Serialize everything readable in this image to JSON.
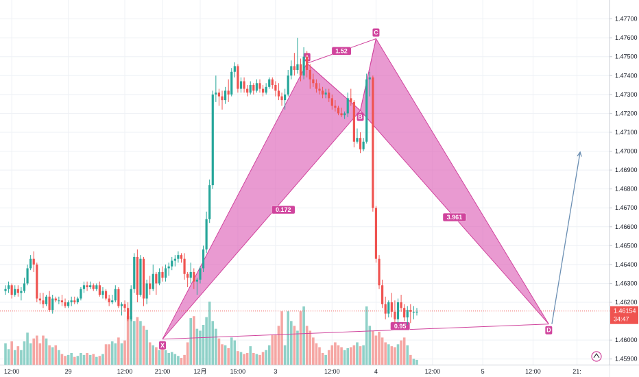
{
  "chart_data": {
    "type": "candlestick",
    "instrument_note": "",
    "price_axis": {
      "range": [
        1.4587,
        1.478
      ],
      "ticks": [
        1.477,
        1.476,
        1.475,
        1.474,
        1.473,
        1.472,
        1.471,
        1.47,
        1.469,
        1.468,
        1.467,
        1.466,
        1.465,
        1.464,
        1.463,
        1.462,
        1.46,
        1.459
      ],
      "tick_labels": [
        "1.47700",
        "1.47600",
        "1.47500",
        "1.47400",
        "1.47300",
        "1.47200",
        "1.47100",
        "1.47000",
        "1.46900",
        "1.46800",
        "1.46700",
        "1.46600",
        "1.46500",
        "1.46400",
        "1.46300",
        "1.46200",
        "1.46000",
        "1.45900"
      ],
      "side": "right",
      "grid": true
    },
    "time_axis": {
      "tick_labels": [
        "12:00",
        "29",
        "12:00",
        "21:00",
        "12月",
        "15:00",
        "3",
        "12:00",
        "4",
        "12:00",
        "5",
        "12:00",
        "21:"
      ],
      "tick_index": [
        2,
        20,
        38,
        50,
        62,
        74,
        86,
        104,
        118,
        136,
        152,
        168,
        182
      ],
      "grid": true
    },
    "last_price": {
      "value": 1.46154,
      "label": "1.46154",
      "countdown": "34:47",
      "color": "#ef5350"
    },
    "up_color": "#26a69a",
    "down_color": "#ef5350",
    "volume_up_color": "#8fd1c8",
    "volume_down_color": "#f5a6a3",
    "candles": [
      [
        1.4626,
        1.4629,
        1.4624,
        1.4627,
        44
      ],
      [
        1.4627,
        1.4631,
        1.4625,
        1.4629,
        32
      ],
      [
        1.4629,
        1.463,
        1.4622,
        1.4624,
        48
      ],
      [
        1.4624,
        1.4629,
        1.4623,
        1.4627,
        30
      ],
      [
        1.4627,
        1.4629,
        1.4623,
        1.4625,
        38
      ],
      [
        1.4625,
        1.4628,
        1.4621,
        1.4626,
        30
      ],
      [
        1.4626,
        1.4633,
        1.4625,
        1.463,
        48
      ],
      [
        1.463,
        1.464,
        1.4629,
        1.4638,
        66
      ],
      [
        1.4638,
        1.4645,
        1.4637,
        1.4643,
        44
      ],
      [
        1.4643,
        1.4647,
        1.4636,
        1.464,
        54
      ],
      [
        1.464,
        1.4641,
        1.462,
        1.4622,
        60
      ],
      [
        1.4622,
        1.4625,
        1.4619,
        1.4621,
        44
      ],
      [
        1.4621,
        1.4625,
        1.4617,
        1.4619,
        60
      ],
      [
        1.4619,
        1.4624,
        1.4618,
        1.4623,
        54
      ],
      [
        1.4623,
        1.4626,
        1.4615,
        1.4616,
        40
      ],
      [
        1.4616,
        1.4624,
        1.4614,
        1.4622,
        36
      ],
      [
        1.4622,
        1.4623,
        1.462,
        1.4621,
        40
      ],
      [
        1.4621,
        1.4623,
        1.4619,
        1.4621,
        30
      ],
      [
        1.4621,
        1.4624,
        1.4618,
        1.462,
        22
      ],
      [
        1.462,
        1.4622,
        1.4617,
        1.4618,
        18
      ],
      [
        1.4618,
        1.4621,
        1.4617,
        1.462,
        20
      ],
      [
        1.462,
        1.4623,
        1.4618,
        1.4621,
        24
      ],
      [
        1.4621,
        1.4623,
        1.4619,
        1.462,
        16
      ],
      [
        1.462,
        1.4623,
        1.4619,
        1.4622,
        18
      ],
      [
        1.4622,
        1.4628,
        1.4621,
        1.4627,
        24
      ],
      [
        1.4627,
        1.4631,
        1.4625,
        1.4629,
        20
      ],
      [
        1.4629,
        1.4631,
        1.4626,
        1.4628,
        24
      ],
      [
        1.4628,
        1.4631,
        1.4627,
        1.4629,
        20
      ],
      [
        1.4629,
        1.463,
        1.4626,
        1.4627,
        22
      ],
      [
        1.4627,
        1.463,
        1.4626,
        1.4629,
        16
      ],
      [
        1.4629,
        1.4631,
        1.4623,
        1.4624,
        18
      ],
      [
        1.4624,
        1.4628,
        1.4622,
        1.4626,
        22
      ],
      [
        1.4626,
        1.4627,
        1.4621,
        1.4622,
        42
      ],
      [
        1.4622,
        1.4624,
        1.4618,
        1.462,
        42
      ],
      [
        1.462,
        1.4624,
        1.4619,
        1.4621,
        48
      ],
      [
        1.4621,
        1.4629,
        1.462,
        1.4627,
        44
      ],
      [
        1.4627,
        1.4628,
        1.4617,
        1.4618,
        56
      ],
      [
        1.4618,
        1.462,
        1.4613,
        1.4619,
        44
      ],
      [
        1.4619,
        1.4621,
        1.4615,
        1.4617,
        50
      ],
      [
        1.4617,
        1.462,
        1.461,
        1.4611,
        100
      ],
      [
        1.4611,
        1.4629,
        1.461,
        1.4627,
        100
      ],
      [
        1.4627,
        1.4646,
        1.4625,
        1.4644,
        90
      ],
      [
        1.4644,
        1.4648,
        1.462,
        1.4624,
        98
      ],
      [
        1.4624,
        1.4645,
        1.4623,
        1.4643,
        90
      ],
      [
        1.4643,
        1.4644,
        1.4618,
        1.4622,
        80
      ],
      [
        1.4622,
        1.4632,
        1.4619,
        1.463,
        72
      ],
      [
        1.463,
        1.4634,
        1.4624,
        1.4627,
        46
      ],
      [
        1.4627,
        1.464,
        1.4626,
        1.4635,
        40
      ],
      [
        1.4635,
        1.4636,
        1.4624,
        1.463,
        36
      ],
      [
        1.463,
        1.4638,
        1.4629,
        1.4636,
        30
      ],
      [
        1.4636,
        1.4639,
        1.4631,
        1.4633,
        36
      ],
      [
        1.4633,
        1.464,
        1.4631,
        1.4638,
        30
      ],
      [
        1.4638,
        1.4641,
        1.4634,
        1.4639,
        24
      ],
      [
        1.4639,
        1.4644,
        1.4637,
        1.4642,
        26
      ],
      [
        1.4642,
        1.4645,
        1.4639,
        1.4643,
        22
      ],
      [
        1.4643,
        1.4647,
        1.4641,
        1.4645,
        18
      ],
      [
        1.4645,
        1.4646,
        1.4641,
        1.4643,
        14
      ],
      [
        1.4643,
        1.4646,
        1.4632,
        1.4635,
        20
      ],
      [
        1.4635,
        1.4636,
        1.4628,
        1.4633,
        46
      ],
      [
        1.4633,
        1.4641,
        1.463,
        1.4636,
        96
      ],
      [
        1.4636,
        1.4638,
        1.4627,
        1.4631,
        100
      ],
      [
        1.4631,
        1.4633,
        1.4624,
        1.4632,
        74
      ],
      [
        1.4632,
        1.4639,
        1.463,
        1.4638,
        70
      ],
      [
        1.4638,
        1.465,
        1.4636,
        1.4648,
        82
      ],
      [
        1.4648,
        1.4668,
        1.4646,
        1.4664,
        98
      ],
      [
        1.4664,
        1.4685,
        1.4662,
        1.4682,
        130
      ],
      [
        1.4682,
        1.4732,
        1.468,
        1.473,
        90
      ],
      [
        1.473,
        1.474,
        1.4726,
        1.4731,
        74
      ],
      [
        1.4731,
        1.4733,
        1.4724,
        1.4729,
        54
      ],
      [
        1.4729,
        1.4732,
        1.4722,
        1.4727,
        42
      ],
      [
        1.4727,
        1.4734,
        1.4725,
        1.4732,
        40
      ],
      [
        1.4732,
        1.4738,
        1.4726,
        1.473,
        34
      ],
      [
        1.473,
        1.4744,
        1.4729,
        1.4742,
        56
      ],
      [
        1.4742,
        1.4747,
        1.4739,
        1.4745,
        50
      ],
      [
        1.4745,
        1.4746,
        1.4731,
        1.4733,
        28
      ],
      [
        1.4733,
        1.4739,
        1.4731,
        1.4737,
        26
      ],
      [
        1.4737,
        1.4739,
        1.4731,
        1.4733,
        22
      ],
      [
        1.4733,
        1.4735,
        1.4729,
        1.4731,
        24
      ],
      [
        1.4731,
        1.4737,
        1.473,
        1.4735,
        38
      ],
      [
        1.4735,
        1.4736,
        1.473,
        1.4732,
        24
      ],
      [
        1.4732,
        1.4738,
        1.4731,
        1.4736,
        22
      ],
      [
        1.4736,
        1.4738,
        1.4731,
        1.4733,
        20
      ],
      [
        1.4733,
        1.4735,
        1.4729,
        1.4731,
        26
      ],
      [
        1.4731,
        1.4736,
        1.473,
        1.4734,
        30
      ],
      [
        1.4734,
        1.4739,
        1.4733,
        1.4738,
        40
      ],
      [
        1.4738,
        1.4739,
        1.4733,
        1.4735,
        62
      ],
      [
        1.4735,
        1.4737,
        1.4729,
        1.4732,
        62
      ],
      [
        1.4732,
        1.4736,
        1.4727,
        1.4729,
        80
      ],
      [
        1.4729,
        1.4731,
        1.4724,
        1.4727,
        110
      ],
      [
        1.4727,
        1.4733,
        1.4722,
        1.473,
        40
      ],
      [
        1.473,
        1.4743,
        1.4729,
        1.474,
        110
      ],
      [
        1.474,
        1.4748,
        1.4738,
        1.4745,
        90
      ],
      [
        1.4745,
        1.4752,
        1.474,
        1.4743,
        80
      ],
      [
        1.4743,
        1.476,
        1.4741,
        1.4746,
        70
      ],
      [
        1.4746,
        1.4749,
        1.4737,
        1.474,
        110
      ],
      [
        1.474,
        1.4755,
        1.4738,
        1.475,
        120
      ],
      [
        1.475,
        1.4753,
        1.4739,
        1.4743,
        80
      ],
      [
        1.4743,
        1.4746,
        1.4733,
        1.4738,
        70
      ],
      [
        1.4738,
        1.4741,
        1.4734,
        1.4736,
        56
      ],
      [
        1.4736,
        1.4738,
        1.4731,
        1.4733,
        44
      ],
      [
        1.4733,
        1.4736,
        1.473,
        1.4732,
        36
      ],
      [
        1.4732,
        1.4734,
        1.4728,
        1.473,
        24
      ],
      [
        1.473,
        1.4733,
        1.4728,
        1.4731,
        20
      ],
      [
        1.4731,
        1.4733,
        1.4726,
        1.4728,
        30
      ],
      [
        1.4728,
        1.473,
        1.4722,
        1.4724,
        40
      ],
      [
        1.4724,
        1.4727,
        1.4721,
        1.4723,
        46
      ],
      [
        1.4723,
        1.4724,
        1.4719,
        1.472,
        40
      ],
      [
        1.472,
        1.4723,
        1.4718,
        1.4719,
        36
      ],
      [
        1.4719,
        1.4721,
        1.4717,
        1.472,
        30
      ],
      [
        1.472,
        1.4731,
        1.4718,
        1.4728,
        34
      ],
      [
        1.4728,
        1.4733,
        1.4724,
        1.4726,
        36
      ],
      [
        1.4726,
        1.4727,
        1.4702,
        1.4705,
        40
      ],
      [
        1.4705,
        1.4712,
        1.4704,
        1.4707,
        46
      ],
      [
        1.4707,
        1.471,
        1.4699,
        1.4701,
        38
      ],
      [
        1.4701,
        1.4707,
        1.47,
        1.4705,
        40
      ],
      [
        1.4705,
        1.4741,
        1.4704,
        1.4738,
        120
      ],
      [
        1.4738,
        1.4742,
        1.4729,
        1.4739,
        80
      ],
      [
        1.4739,
        1.474,
        1.4668,
        1.467,
        70
      ],
      [
        1.467,
        1.4671,
        1.4641,
        1.4643,
        60
      ],
      [
        1.4643,
        1.4645,
        1.4627,
        1.4629,
        68
      ],
      [
        1.4629,
        1.4632,
        1.4617,
        1.4619,
        56
      ],
      [
        1.4619,
        1.4623,
        1.4611,
        1.4614,
        46
      ],
      [
        1.4614,
        1.4621,
        1.4612,
        1.462,
        42
      ],
      [
        1.462,
        1.4625,
        1.4612,
        1.4615,
        38
      ],
      [
        1.4615,
        1.4621,
        1.4609,
        1.4611,
        36
      ],
      [
        1.4611,
        1.4622,
        1.4609,
        1.462,
        42
      ],
      [
        1.462,
        1.4624,
        1.4615,
        1.4617,
        50
      ],
      [
        1.4617,
        1.4619,
        1.461,
        1.4612,
        56
      ],
      [
        1.4612,
        1.4618,
        1.4608,
        1.4616,
        40
      ],
      [
        1.4616,
        1.4619,
        1.4609,
        1.4615,
        20
      ],
      [
        1.4615,
        1.4618,
        1.4611,
        1.4615,
        12
      ],
      [
        1.4615,
        1.4617,
        1.4613,
        1.4615,
        10
      ]
    ],
    "pattern": {
      "name": "",
      "points": [
        {
          "label": "X",
          "index": 50,
          "price": 1.46005
        },
        {
          "label": "A",
          "index": 96,
          "price": 1.47465
        },
        {
          "label": "B",
          "index": 113,
          "price": 1.47215
        },
        {
          "label": "C",
          "index": 118,
          "price": 1.47595
        },
        {
          "label": "D",
          "index": 173,
          "price": 1.46085
        }
      ],
      "ratios": [
        {
          "label": "0.172",
          "between": "XA-B"
        },
        {
          "label": "1.52",
          "between": "AB-C"
        },
        {
          "label": "3.961",
          "between": "BC-D"
        },
        {
          "label": "0.95",
          "between": "XD"
        }
      ],
      "fill_color": "#dd64b8",
      "line_color": "#d0449d"
    },
    "projection": {
      "from_index": 174,
      "from_price": 1.46085,
      "to_index": 183,
      "to_price": 1.46995
    }
  },
  "footer": {
    "chart_settings_icon": "tradingview-logo-icon"
  }
}
